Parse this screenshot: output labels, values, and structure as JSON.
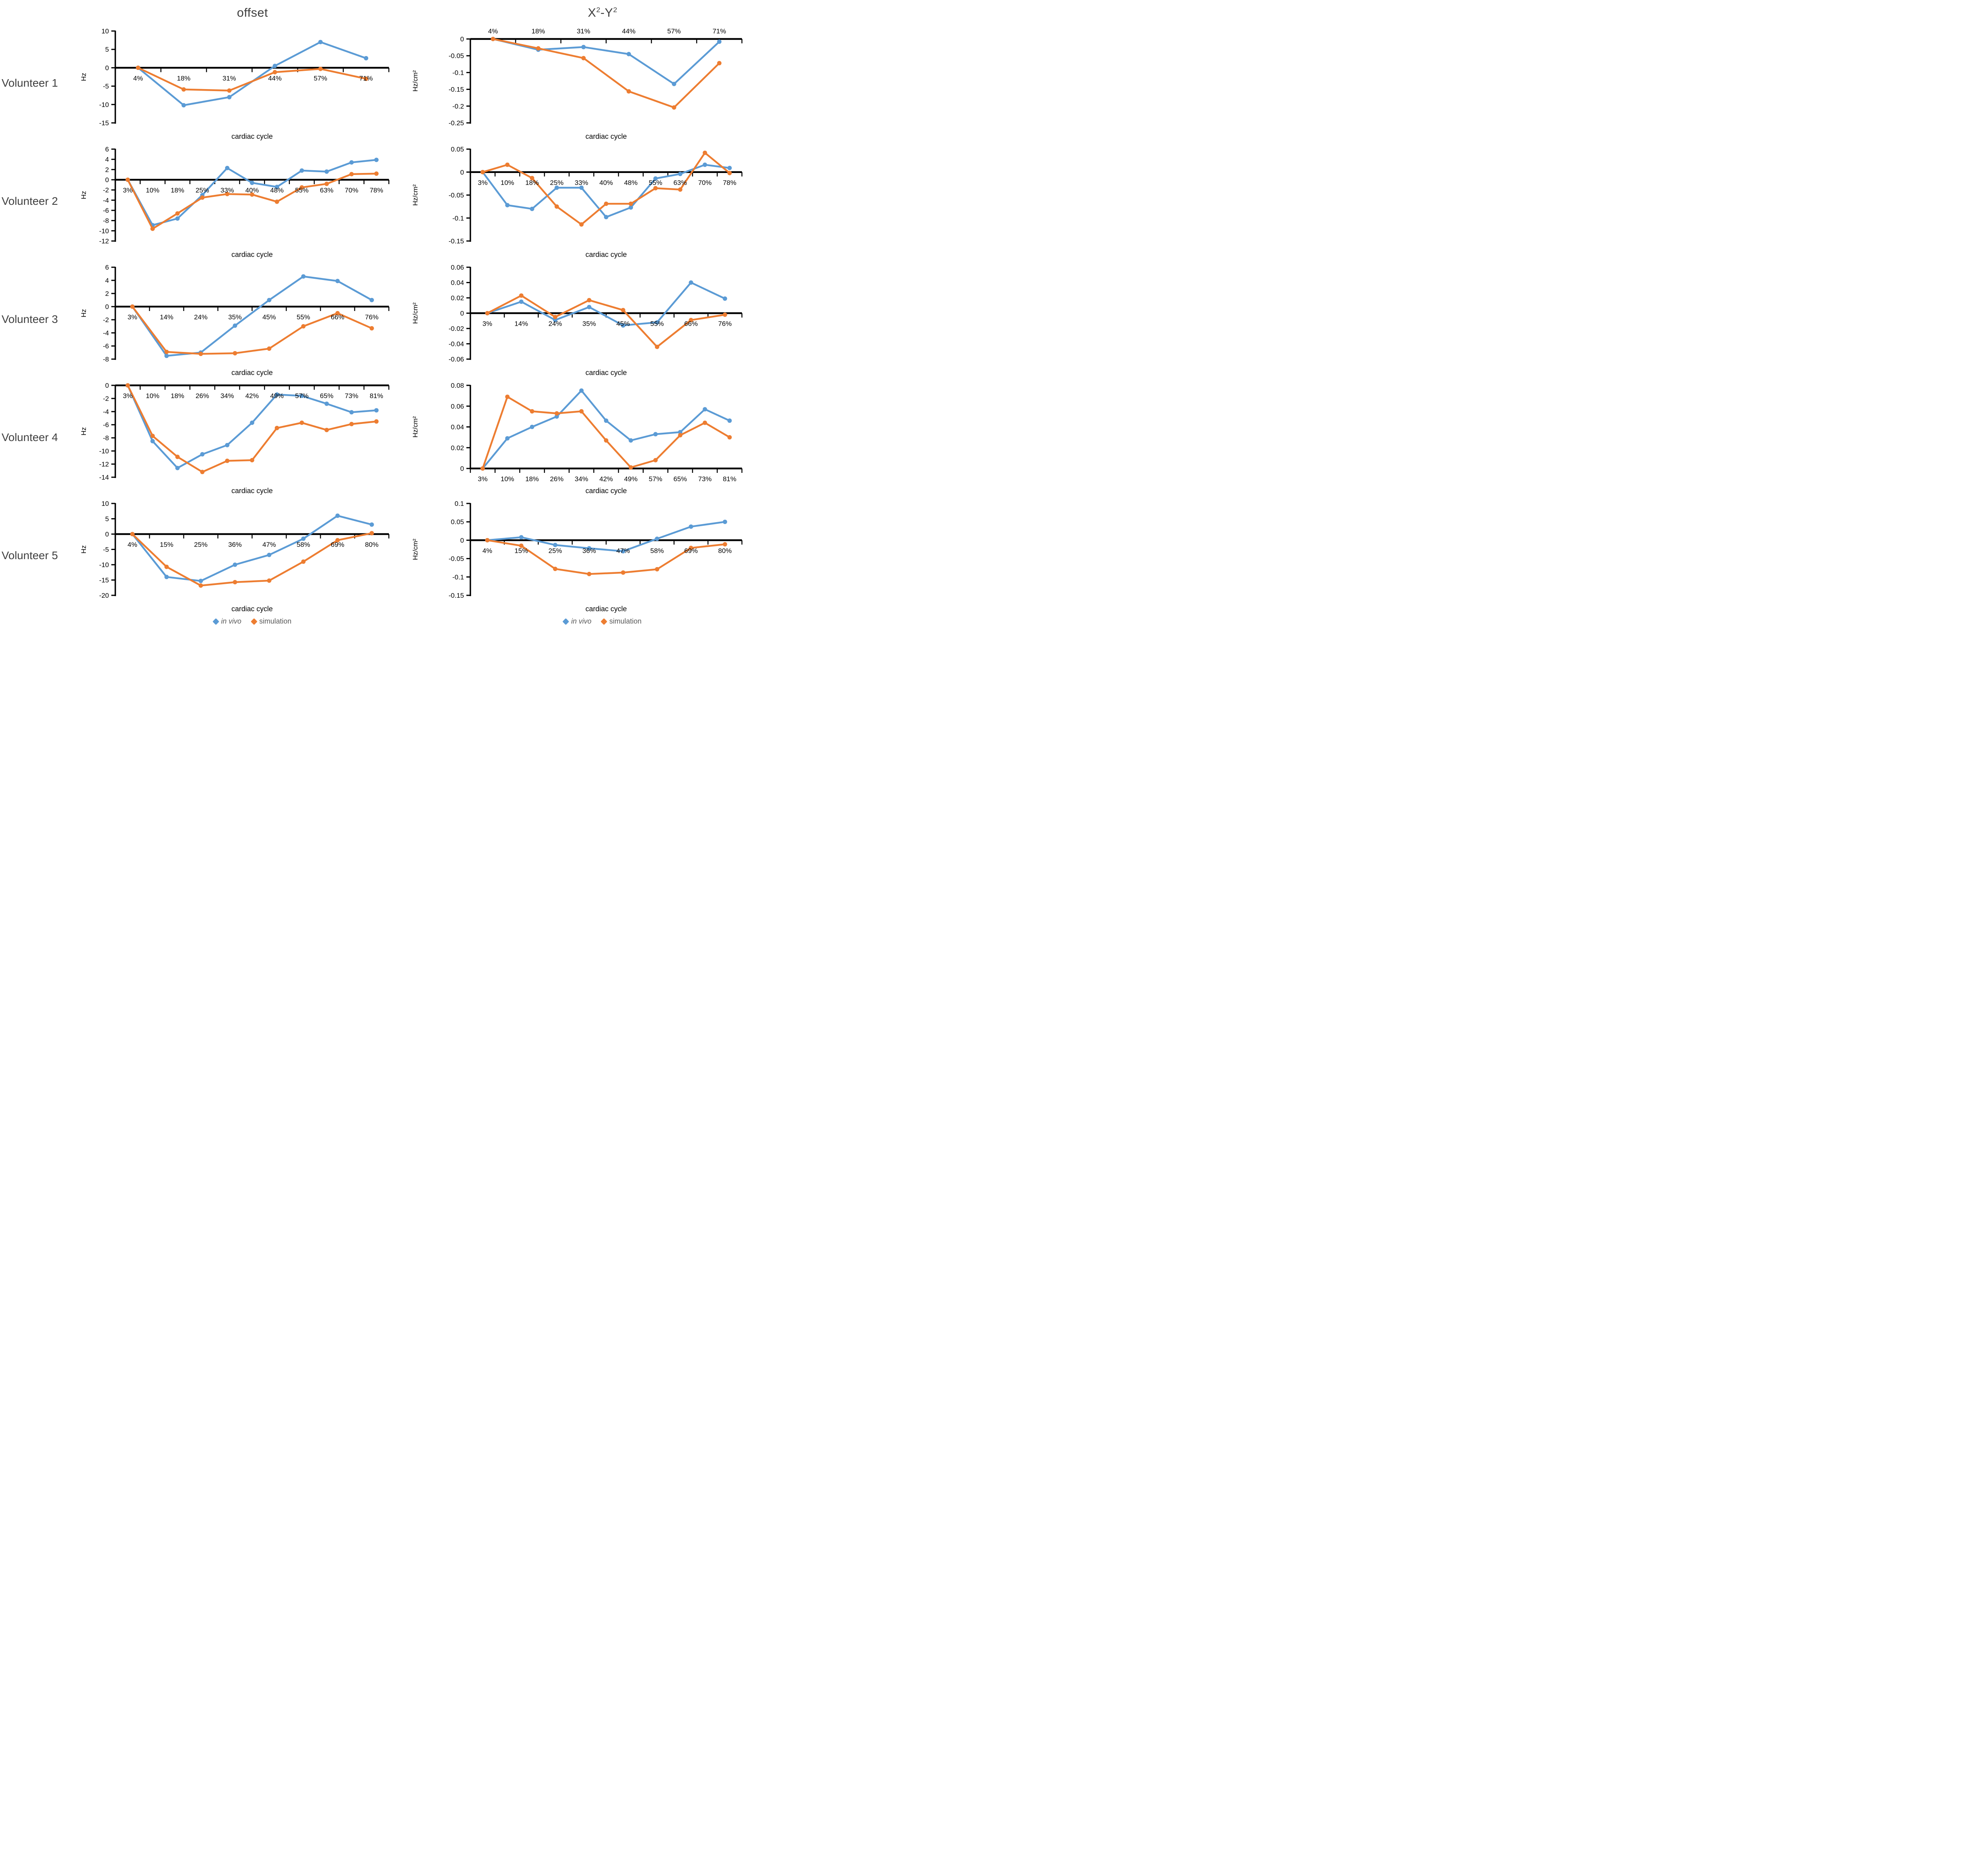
{
  "titles": {
    "left": "offset",
    "right_base1": "X",
    "right_sup1": "2",
    "right_base2": "-Y",
    "right_sup2": "2"
  },
  "volunteers": [
    "Volunteer 1",
    "Volunteer 2",
    "Volunteer 3",
    "Volunteer 4",
    "Volunteer 5"
  ],
  "legend": {
    "items": [
      {
        "label": "in vivo",
        "color": "#5B9BD5",
        "italic": true
      },
      {
        "label": "simulation",
        "color": "#ED7D31",
        "italic": false
      }
    ]
  },
  "colors": {
    "in_vivo": "#5B9BD5",
    "simulation": "#ED7D31",
    "axis": "#000000",
    "heading_text": "#3f3f3f",
    "legend_text": "#595959"
  },
  "chart_data": [
    {
      "id": "volunteer1-offset",
      "volunteer": "Volunteer 1",
      "col": "left",
      "type": "line",
      "xlabel": "cardiac cycle",
      "ylabel": "Hz",
      "categories": [
        "4%",
        "18%",
        "31%",
        "44%",
        "57%",
        "71%"
      ],
      "ylim": [
        -15,
        10
      ],
      "yticks": [
        10,
        5,
        0,
        -5,
        -10,
        -15
      ],
      "ytick_labels": [
        "10",
        "5",
        "0",
        "-5",
        "-10",
        "-15"
      ],
      "xlabels_position": "below",
      "grid": false,
      "legend_position": "bottom",
      "series": [
        {
          "name": "in vivo",
          "color": "#5B9BD5",
          "values": [
            0,
            -10.2,
            -8.0,
            0.5,
            7.0,
            2.6
          ]
        },
        {
          "name": "simulation",
          "color": "#ED7D31",
          "values": [
            0,
            -5.9,
            -6.2,
            -1.2,
            -0.3,
            -3.0
          ]
        }
      ]
    },
    {
      "id": "volunteer1-x2y2",
      "volunteer": "Volunteer 1",
      "col": "right",
      "type": "line",
      "xlabel": "cardiac cycle",
      "ylabel": "Hz/cm²",
      "categories": [
        "4%",
        "18%",
        "31%",
        "44%",
        "57%",
        "71%"
      ],
      "ylim": [
        -0.25,
        0
      ],
      "yticks": [
        0,
        -0.05,
        -0.1,
        -0.15,
        -0.2,
        -0.25
      ],
      "ytick_labels": [
        "0",
        "-0.05",
        "-0.1",
        "-0.15",
        "-0.2",
        "-0.25"
      ],
      "xlabels_position": "above",
      "grid": false,
      "legend_position": "bottom",
      "series": [
        {
          "name": "in vivo",
          "color": "#5B9BD5",
          "values": [
            0,
            -0.032,
            -0.024,
            -0.045,
            -0.134,
            -0.008
          ]
        },
        {
          "name": "simulation",
          "color": "#ED7D31",
          "values": [
            0,
            -0.028,
            -0.057,
            -0.156,
            -0.204,
            -0.072
          ]
        }
      ]
    },
    {
      "id": "volunteer2-offset",
      "volunteer": "Volunteer 2",
      "col": "left",
      "type": "line",
      "xlabel": "cardiac  cycle",
      "ylabel": "Hz",
      "categories": [
        "3%",
        "10%",
        "18%",
        "25%",
        "33%",
        "40%",
        "48%",
        "55%",
        "63%",
        "70%",
        "78%"
      ],
      "ylim": [
        -12,
        6
      ],
      "yticks": [
        6,
        4,
        2,
        0,
        -2,
        -4,
        -6,
        -8,
        -10,
        -12
      ],
      "ytick_labels": [
        "6",
        "4",
        "2",
        "0",
        "-2",
        "-4",
        "-6",
        "-8",
        "-10",
        "-12"
      ],
      "xlabels_position": "below",
      "grid": false,
      "legend_position": "bottom",
      "series": [
        {
          "name": "in vivo",
          "color": "#5B9BD5",
          "values": [
            0,
            -8.9,
            -7.6,
            -3.0,
            2.3,
            -0.6,
            -1.4,
            1.8,
            1.6,
            3.4,
            3.9
          ]
        },
        {
          "name": "simulation",
          "color": "#ED7D31",
          "values": [
            0,
            -9.6,
            -6.6,
            -3.5,
            -2.8,
            -2.9,
            -4.3,
            -1.5,
            -0.8,
            1.1,
            1.2
          ]
        }
      ]
    },
    {
      "id": "volunteer2-x2y2",
      "volunteer": "Volunteer 2",
      "col": "right",
      "type": "line",
      "xlabel": "cardiac cycle",
      "ylabel": "Hz/cm²",
      "categories": [
        "3%",
        "10%",
        "18%",
        "25%",
        "33%",
        "40%",
        "48%",
        "55%",
        "63%",
        "70%",
        "78%"
      ],
      "ylim": [
        -0.15,
        0.05
      ],
      "yticks": [
        0.05,
        0,
        -0.05,
        -0.1,
        -0.15
      ],
      "ytick_labels": [
        "0.05",
        "0",
        "-0.05",
        "-0.1",
        "-0.15"
      ],
      "xlabels_position": "below",
      "grid": false,
      "legend_position": "bottom",
      "series": [
        {
          "name": "in vivo",
          "color": "#5B9BD5",
          "values": [
            0,
            -0.072,
            -0.08,
            -0.034,
            -0.034,
            -0.098,
            -0.077,
            -0.014,
            -0.004,
            0.016,
            0.009
          ]
        },
        {
          "name": "simulation",
          "color": "#ED7D31",
          "values": [
            0,
            0.016,
            -0.013,
            -0.075,
            -0.114,
            -0.069,
            -0.069,
            -0.035,
            -0.038,
            0.042,
            -0.002
          ]
        }
      ]
    },
    {
      "id": "volunteer3-offset",
      "volunteer": "Volunteer 3",
      "col": "left",
      "type": "line",
      "xlabel": "cardiac cycle",
      "ylabel": "Hz",
      "categories": [
        "3%",
        "14%",
        "24%",
        "35%",
        "45%",
        "55%",
        "66%",
        "76%"
      ],
      "ylim": [
        -8,
        6
      ],
      "yticks": [
        6,
        4,
        2,
        0,
        -2,
        -4,
        -6,
        -8
      ],
      "ytick_labels": [
        "6",
        "4",
        "2",
        "0",
        "-2",
        "-4",
        "-6",
        "-8"
      ],
      "xlabels_position": "below",
      "grid": false,
      "legend_position": "bottom",
      "series": [
        {
          "name": "in vivo",
          "color": "#5B9BD5",
          "values": [
            0,
            -7.5,
            -7.0,
            -2.9,
            1.0,
            4.6,
            3.9,
            1.0
          ]
        },
        {
          "name": "simulation",
          "color": "#ED7D31",
          "values": [
            0,
            -6.9,
            -7.2,
            -7.1,
            -6.4,
            -3.0,
            -1.0,
            -3.3
          ]
        }
      ]
    },
    {
      "id": "volunteer3-x2y2",
      "volunteer": "Volunteer 3",
      "col": "right",
      "type": "line",
      "xlabel": "cardiac cycle",
      "ylabel": "Hz/cm²",
      "categories": [
        "3%",
        "14%",
        "24%",
        "35%",
        "45%",
        "55%",
        "66%",
        "76%"
      ],
      "ylim": [
        -0.06,
        0.06
      ],
      "yticks": [
        0.06,
        0.04,
        0.02,
        0,
        -0.02,
        -0.04,
        -0.06
      ],
      "ytick_labels": [
        "0.06",
        "0.04",
        "0.02",
        "0",
        "-0.02",
        "-0.04",
        "-0.06"
      ],
      "xlabels_position": "below",
      "grid": false,
      "legend_position": "bottom",
      "series": [
        {
          "name": "in vivo",
          "color": "#5B9BD5",
          "values": [
            0,
            0.015,
            -0.009,
            0.008,
            -0.016,
            -0.012,
            0.04,
            0.019
          ]
        },
        {
          "name": "simulation",
          "color": "#ED7D31",
          "values": [
            0,
            0.023,
            -0.005,
            0.017,
            0.004,
            -0.044,
            -0.009,
            -0.002
          ]
        }
      ]
    },
    {
      "id": "volunteer4-offset",
      "volunteer": "Volunteer 4",
      "col": "left",
      "type": "line",
      "xlabel": "cardiac cycle",
      "ylabel": "Hz",
      "categories": [
        "3%",
        "10%",
        "18%",
        "26%",
        "34%",
        "42%",
        "49%",
        "57%",
        "65%",
        "73%",
        "81%"
      ],
      "ylim": [
        -14,
        0
      ],
      "yticks": [
        0,
        -2,
        -4,
        -6,
        -8,
        -10,
        -12,
        -14
      ],
      "ytick_labels": [
        "0",
        "-2",
        "-4",
        "-6",
        "-8",
        "-10",
        "-12",
        "-14"
      ],
      "xlabels_position": "below",
      "grid": false,
      "legend_position": "bottom",
      "series": [
        {
          "name": "in vivo",
          "color": "#5B9BD5",
          "values": [
            0,
            -8.5,
            -12.6,
            -10.5,
            -9.1,
            -5.7,
            -1.4,
            -1.6,
            -2.8,
            -4.1,
            -3.8
          ]
        },
        {
          "name": "simulation",
          "color": "#ED7D31",
          "values": [
            0,
            -7.7,
            -10.9,
            -13.2,
            -11.5,
            -11.4,
            -6.5,
            -5.7,
            -6.8,
            -5.9,
            -5.5
          ]
        }
      ]
    },
    {
      "id": "volunteer4-x2y2",
      "volunteer": "Volunteer 4",
      "col": "right",
      "type": "line",
      "xlabel": "cardiac cycle",
      "ylabel": "Hz/cm²",
      "categories": [
        "3%",
        "10%",
        "18%",
        "26%",
        "34%",
        "42%",
        "49%",
        "57%",
        "65%",
        "73%",
        "81%"
      ],
      "ylim": [
        0,
        0.08
      ],
      "yticks": [
        0.08,
        0.06,
        0.04,
        0.02,
        0
      ],
      "ytick_labels": [
        "0.08",
        "0.06",
        "0.04",
        "0.02",
        "0"
      ],
      "xlabels_position": "below",
      "grid": false,
      "legend_position": "bottom",
      "series": [
        {
          "name": "in vivo",
          "color": "#5B9BD5",
          "values": [
            0,
            0.029,
            0.04,
            0.05,
            0.075,
            0.046,
            0.027,
            0.033,
            0.035,
            0.057,
            0.046
          ]
        },
        {
          "name": "simulation",
          "color": "#ED7D31",
          "values": [
            0,
            0.069,
            0.055,
            0.053,
            0.055,
            0.027,
            0.001,
            0.008,
            0.032,
            0.044,
            0.03
          ]
        }
      ]
    },
    {
      "id": "volunteer5-offset",
      "volunteer": "Volunteer 5",
      "col": "left",
      "type": "line",
      "xlabel": "cardiac cycle",
      "ylabel": "Hz",
      "categories": [
        "4%",
        "15%",
        "25%",
        "36%",
        "47%",
        "58%",
        "69%",
        "80%"
      ],
      "ylim": [
        -20,
        10
      ],
      "yticks": [
        10,
        5,
        0,
        -5,
        -10,
        -15,
        -20
      ],
      "ytick_labels": [
        "10",
        "5",
        "0",
        "-5",
        "-10",
        "-15",
        "-20"
      ],
      "xlabels_position": "below",
      "grid": false,
      "legend_position": "bottom",
      "series": [
        {
          "name": "in vivo",
          "color": "#5B9BD5",
          "values": [
            0,
            -14.0,
            -15.3,
            -10.0,
            -6.8,
            -1.5,
            6.0,
            3.1
          ]
        },
        {
          "name": "simulation",
          "color": "#ED7D31",
          "values": [
            0,
            -10.7,
            -16.8,
            -15.7,
            -15.2,
            -9.0,
            -2.0,
            0.3
          ]
        }
      ]
    },
    {
      "id": "volunteer5-x2y2",
      "volunteer": "Volunteer 5",
      "col": "right",
      "type": "line",
      "xlabel": "cardiac cycle",
      "ylabel": "Hz/cm²",
      "categories": [
        "4%",
        "15%",
        "25%",
        "36%",
        "47%",
        "58%",
        "69%",
        "80%"
      ],
      "ylim": [
        -0.15,
        0.1
      ],
      "yticks": [
        0.1,
        0.05,
        0,
        -0.05,
        -0.1,
        -0.15
      ],
      "ytick_labels": [
        "0.1",
        "0.05",
        "0",
        "-0.05",
        "-0.1",
        "-0.15"
      ],
      "xlabels_position": "below",
      "grid": false,
      "legend_position": "bottom",
      "series": [
        {
          "name": "in vivo",
          "color": "#5B9BD5",
          "values": [
            0,
            0.008,
            -0.013,
            -0.022,
            -0.03,
            0.004,
            0.037,
            0.05
          ]
        },
        {
          "name": "simulation",
          "color": "#ED7D31",
          "values": [
            0,
            -0.015,
            -0.078,
            -0.092,
            -0.088,
            -0.079,
            -0.021,
            -0.011
          ]
        }
      ]
    }
  ]
}
